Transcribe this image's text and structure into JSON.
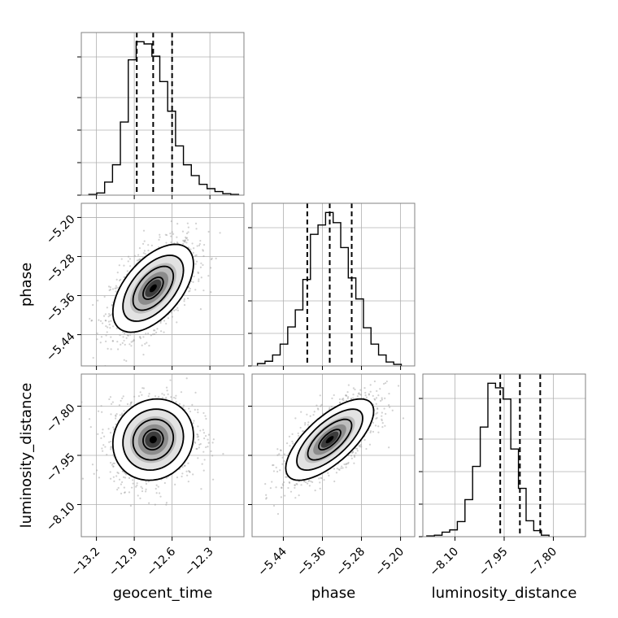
{
  "chart_data": {
    "type": "corner",
    "parameters": [
      "geocent_time",
      "phase",
      "luminosity_distance"
    ],
    "axes": {
      "geocent_time": {
        "label": "geocent_time",
        "range": [
          -13.32,
          -12.03
        ],
        "ticks": [
          -13.2,
          -12.9,
          -12.6,
          -12.3
        ],
        "tick_labels": [
          "−13.2",
          "−12.9",
          "−12.6",
          "−12.3"
        ]
      },
      "phase": {
        "label": "phase",
        "range": [
          -5.504,
          -5.171
        ],
        "ticks": [
          -5.44,
          -5.36,
          -5.28,
          -5.2
        ],
        "tick_labels": [
          "−5.44",
          "−5.36",
          "−5.28",
          "−5.20"
        ]
      },
      "luminosity_distance": {
        "label": "luminosity_distance",
        "range": [
          -8.198,
          -7.702
        ],
        "ticks": [
          -8.1,
          -7.95,
          -7.8
        ],
        "tick_labels": [
          "−8.10",
          "−7.95",
          "−7.80"
        ]
      }
    },
    "quantiles": {
      "geocent_time": [
        -12.88,
        -12.75,
        -12.6
      ],
      "phase": [
        -5.391,
        -5.345,
        -5.3
      ],
      "luminosity_distance": [
        -7.962,
        -7.902,
        -7.84
      ]
    },
    "histograms": {
      "geocent_time": {
        "edges_start": -13.26,
        "bin_width": 0.0625,
        "counts": [
          1,
          3,
          18,
          42,
          101,
          187,
          212,
          209,
          192,
          157,
          116,
          68,
          42,
          27,
          15,
          9,
          5,
          2,
          1
        ]
      },
      "phase": {
        "edges_start": -5.493,
        "bin_width": 0.0155,
        "counts": [
          3,
          6,
          14,
          28,
          50,
          72,
          111,
          169,
          181,
          197,
          184,
          152,
          113,
          86,
          49,
          28,
          14,
          5,
          2
        ]
      },
      "luminosity_distance": {
        "edges_start": -8.186,
        "bin_width": 0.0233,
        "counts": [
          1,
          2,
          6,
          9,
          20,
          49,
          93,
          145,
          203,
          197,
          182,
          116,
          64,
          21,
          8,
          2
        ]
      }
    },
    "posterior_mean": {
      "geocent_time": -12.75,
      "phase": -5.345,
      "luminosity_distance": -7.902
    },
    "posterior_std": {
      "geocent_time": 0.16,
      "phase": 0.045,
      "luminosity_distance": 0.062
    },
    "correlations": {
      "geocent_time|phase": 0.55,
      "geocent_time|luminosity_distance": 0.1,
      "phase|luminosity_distance": 0.7
    },
    "grid": true,
    "show_titles": false
  }
}
